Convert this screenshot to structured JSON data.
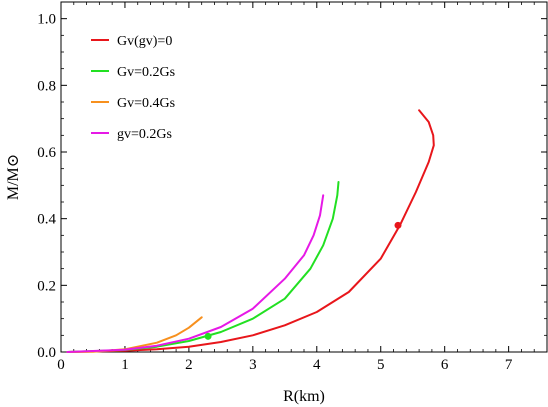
{
  "chart_data": {
    "type": "line",
    "title": "",
    "xlabel": "R(km)",
    "ylabel": "M/M⊙",
    "xlim": [
      0,
      7.6
    ],
    "ylim": [
      0,
      1.05
    ],
    "x_ticks": [
      "0",
      "1",
      "2",
      "3",
      "4",
      "5",
      "6",
      "7"
    ],
    "y_ticks": [
      "0.0",
      "0.2",
      "0.4",
      "0.6",
      "0.8",
      "1.0"
    ],
    "x_tick_values": [
      0,
      1,
      2,
      3,
      4,
      5,
      6,
      7
    ],
    "y_tick_values": [
      0,
      0.2,
      0.4,
      0.6,
      0.8,
      1.0
    ],
    "grid": false,
    "legend_position": "top-left",
    "series": [
      {
        "name": "Gv(gv)=0",
        "color": "#e8161b",
        "points": [
          [
            0.1,
            0.0
          ],
          [
            1.0,
            0.004
          ],
          [
            1.5,
            0.008
          ],
          [
            2.0,
            0.016
          ],
          [
            2.5,
            0.03
          ],
          [
            3.0,
            0.05
          ],
          [
            3.5,
            0.08
          ],
          [
            4.0,
            0.12
          ],
          [
            4.5,
            0.18
          ],
          [
            5.0,
            0.28
          ],
          [
            5.3,
            0.38
          ],
          [
            5.55,
            0.48
          ],
          [
            5.75,
            0.57
          ],
          [
            5.83,
            0.62
          ],
          [
            5.82,
            0.65
          ],
          [
            5.75,
            0.69
          ],
          [
            5.6,
            0.725
          ]
        ],
        "marker": [
          5.27,
          0.38
        ]
      },
      {
        "name": "Gv=0.2Gs",
        "color": "#22e022",
        "points": [
          [
            0.1,
            0.0
          ],
          [
            1.0,
            0.006
          ],
          [
            1.5,
            0.016
          ],
          [
            2.0,
            0.033
          ],
          [
            2.5,
            0.06
          ],
          [
            3.0,
            0.1
          ],
          [
            3.5,
            0.16
          ],
          [
            3.9,
            0.25
          ],
          [
            4.1,
            0.32
          ],
          [
            4.25,
            0.4
          ],
          [
            4.32,
            0.47
          ],
          [
            4.34,
            0.51
          ]
        ],
        "marker": [
          2.3,
          0.047
        ]
      },
      {
        "name": "Gv=0.4Gs",
        "color": "#f7901e",
        "points": [
          [
            0.1,
            0.0
          ],
          [
            0.5,
            0.001
          ],
          [
            1.0,
            0.008
          ],
          [
            1.5,
            0.028
          ],
          [
            1.8,
            0.05
          ],
          [
            2.0,
            0.073
          ],
          [
            2.2,
            0.104
          ]
        ]
      },
      {
        "name": "gv=0.2Gs",
        "color": "#e619e6",
        "points": [
          [
            0.1,
            0.0
          ],
          [
            1.0,
            0.007
          ],
          [
            1.5,
            0.019
          ],
          [
            2.0,
            0.04
          ],
          [
            2.5,
            0.075
          ],
          [
            3.0,
            0.13
          ],
          [
            3.5,
            0.22
          ],
          [
            3.8,
            0.29
          ],
          [
            3.95,
            0.35
          ],
          [
            4.05,
            0.41
          ],
          [
            4.1,
            0.47
          ]
        ]
      }
    ]
  }
}
